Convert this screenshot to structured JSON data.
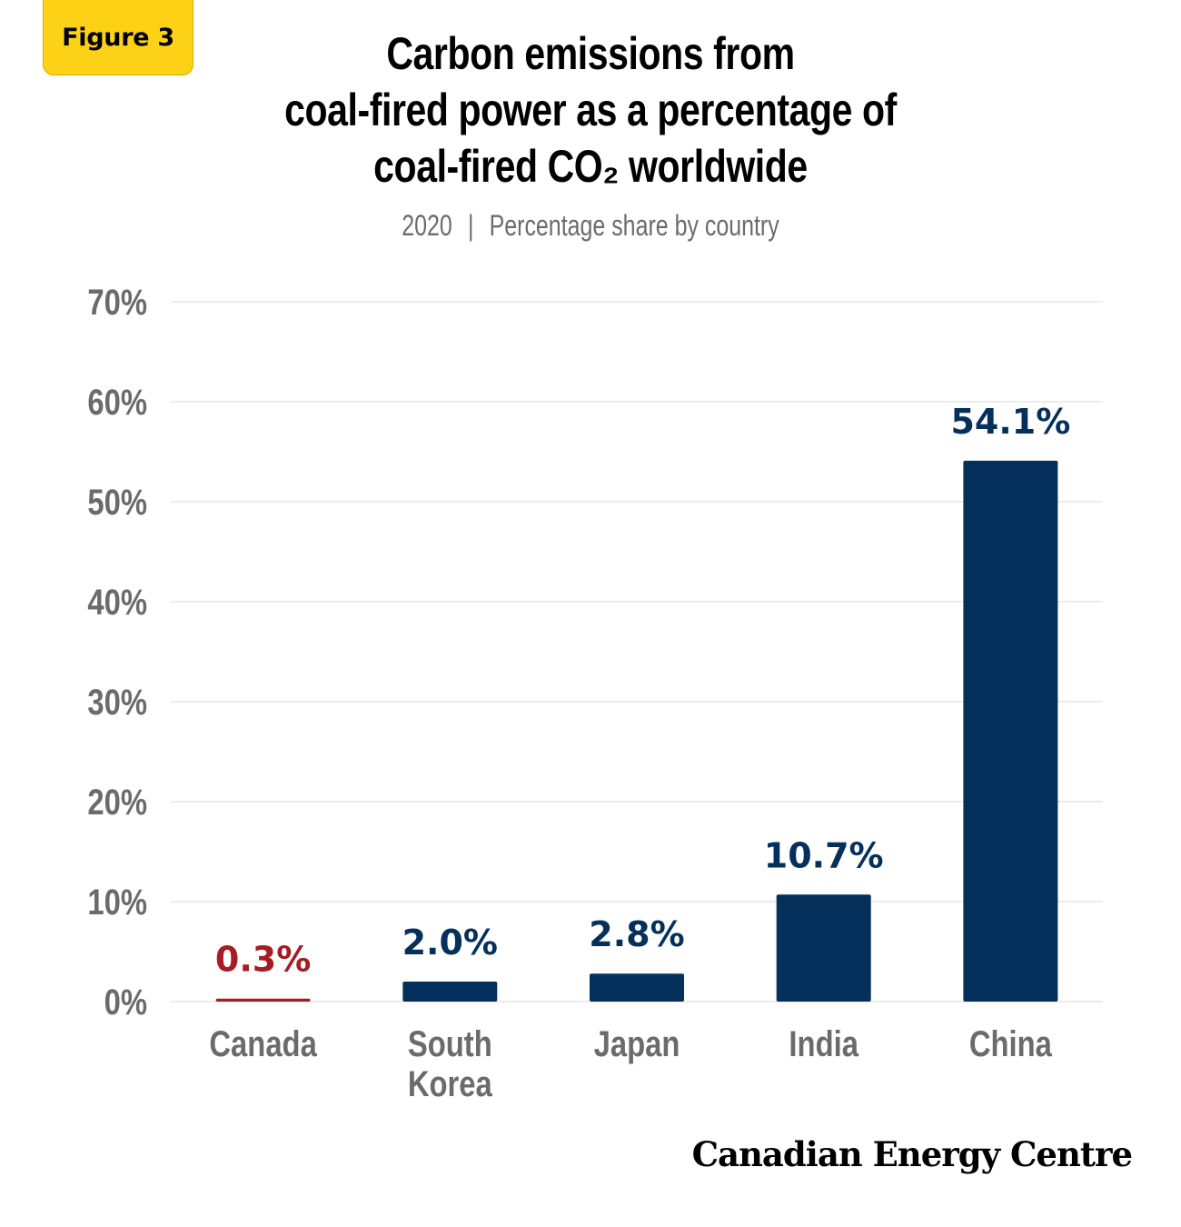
{
  "badge": {
    "label": "Figure 3"
  },
  "source": {
    "text": "Canadian Energy Centre"
  },
  "chart_data": {
    "type": "bar",
    "title_lines": [
      "Carbon emissions from",
      "coal-fired power as a percentage of",
      "coal-fired CO₂ worldwide"
    ],
    "subtitle": {
      "year": "2020",
      "separator": "|",
      "text": "Percentage share by country"
    },
    "categories": [
      "Canada",
      "South Korea",
      "Japan",
      "India",
      "China"
    ],
    "category_lines": [
      [
        "Canada"
      ],
      [
        "South",
        "Korea"
      ],
      [
        "Japan"
      ],
      [
        "India"
      ],
      [
        "China"
      ]
    ],
    "values": [
      0.3,
      2.0,
      2.8,
      10.7,
      54.1
    ],
    "data_labels": [
      "0.3%",
      "2.0%",
      "2.8%",
      "10.7%",
      "54.1%"
    ],
    "yticks": [
      0,
      10,
      20,
      30,
      40,
      50,
      60,
      70
    ],
    "ytick_labels": [
      "0%",
      "10%",
      "20%",
      "30%",
      "40%",
      "50%",
      "60%",
      "70%"
    ],
    "ylim": [
      0,
      70
    ],
    "grid": true,
    "colors": {
      "highlight": "#a51c24",
      "default": "#05305c",
      "grid": "#e6e6e6",
      "axis_text": "#6b6b6b"
    },
    "highlight_index": 0
  }
}
